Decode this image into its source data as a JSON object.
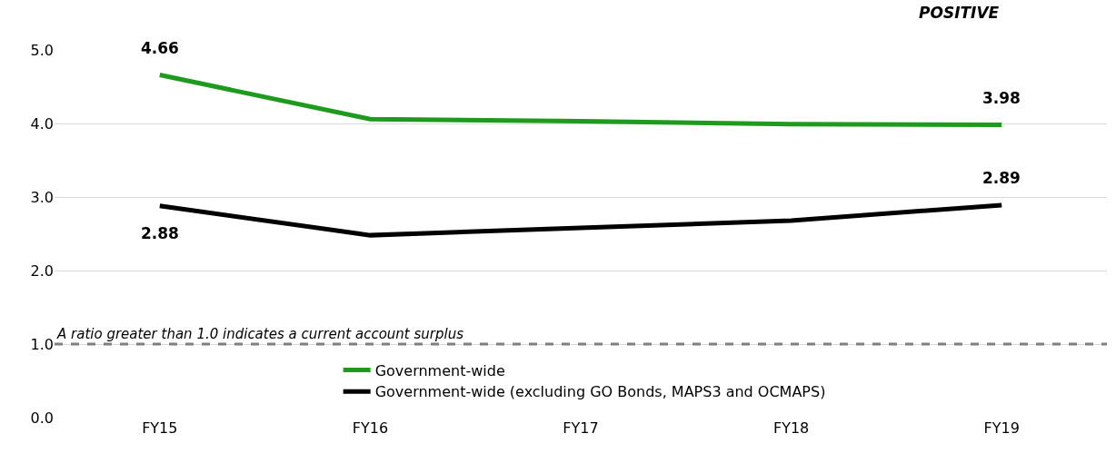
{
  "chart_data": {
    "type": "line",
    "categories": [
      "FY15",
      "FY16",
      "FY17",
      "FY18",
      "FY19"
    ],
    "series": [
      {
        "name": "Government-wide",
        "color": "#1e9a1e",
        "values": [
          4.66,
          4.06,
          4.03,
          3.99,
          3.98
        ],
        "value_labels": [
          "4.66",
          null,
          null,
          null,
          "3.98"
        ]
      },
      {
        "name": "Government-wide (excluding GO Bonds, MAPS3 and OCMAPS)",
        "color": "#000000",
        "values": [
          2.88,
          2.48,
          2.58,
          2.68,
          2.89
        ],
        "value_labels": [
          "2.88",
          null,
          null,
          null,
          "2.89"
        ]
      }
    ],
    "ylim": [
      0,
      5
    ],
    "yticks": [
      {
        "value": 0,
        "label": "0.0"
      },
      {
        "value": 1,
        "label": "1.0"
      },
      {
        "value": 2,
        "label": "2.0"
      },
      {
        "value": 3,
        "label": "3.0"
      },
      {
        "value": 4,
        "label": "4.0"
      },
      {
        "value": 5,
        "label": "5.0"
      }
    ],
    "ref_lines": [
      {
        "axis": "y",
        "value": 1.0,
        "label": "A ratio greater than 1.0 indicates a current account surplus",
        "color": "#7f7f7f",
        "line_style": "dashed"
      }
    ],
    "annotations": [
      "POSITIVE"
    ],
    "grid": "y",
    "legend": "bottom",
    "marker": "none",
    "line_style": "solid"
  }
}
